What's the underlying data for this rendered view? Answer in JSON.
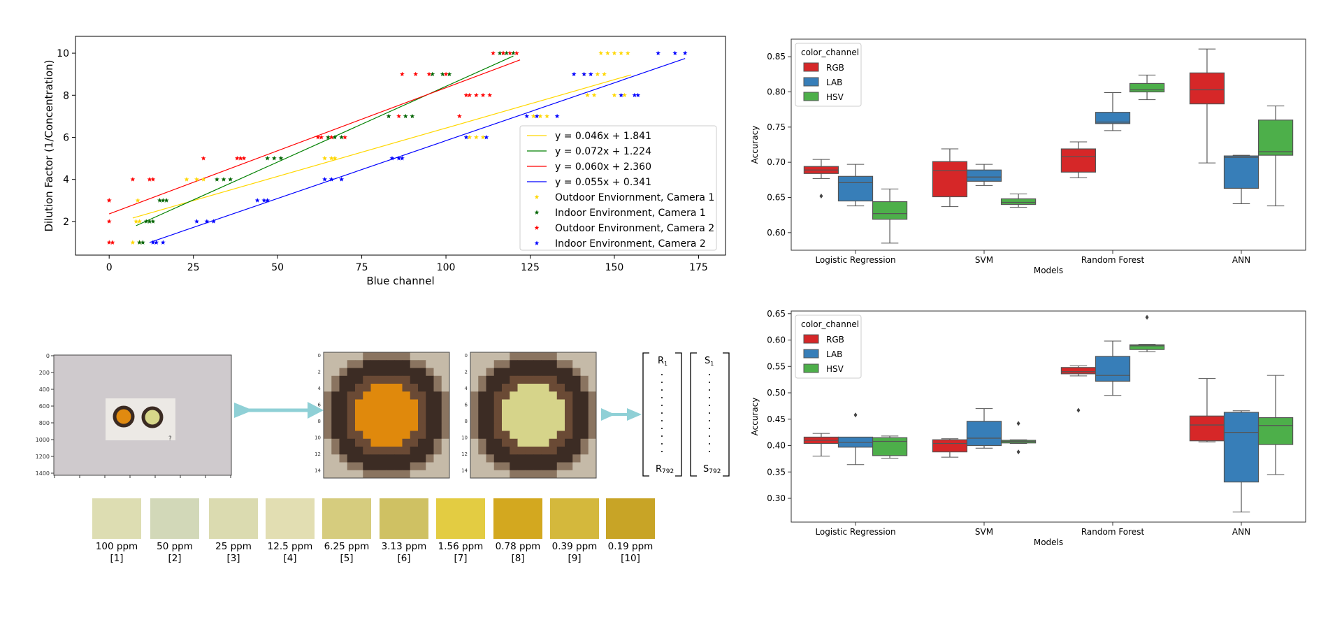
{
  "scatter_chart": {
    "chart_data": {
      "type": "scatter",
      "xlabel": "Blue channel",
      "ylabel": "Dilution Factor (1/Concentration)",
      "xlim": [
        -10,
        183
      ],
      "ylim": [
        0.4,
        10.8
      ],
      "xticks": [
        0,
        25,
        50,
        75,
        100,
        125,
        150,
        175
      ],
      "yticks": [
        2,
        4,
        6,
        8,
        10
      ],
      "legend_position": "lower-right",
      "lines": [
        {
          "label": "y =    0.046x +    1.841",
          "color": "#ffd700",
          "slope": 0.046,
          "intercept": 1.841,
          "x_range": [
            7,
            155
          ]
        },
        {
          "label": "y =    0.072x +    1.224",
          "color": "#008000",
          "slope": 0.072,
          "intercept": 1.224,
          "x_range": [
            8,
            120
          ]
        },
        {
          "label": "y =    0.060x +    2.360",
          "color": "#ff0000",
          "slope": 0.06,
          "intercept": 2.36,
          "x_range": [
            0,
            122
          ]
        },
        {
          "label": "y =    0.055x +    0.341",
          "color": "#0000ff",
          "slope": 0.055,
          "intercept": 0.341,
          "x_range": [
            12,
            171
          ]
        }
      ],
      "series": [
        {
          "name": "Outdoor Enviornment, Camera 1",
          "color": "#ffd700",
          "points": [
            [
              7,
              1
            ],
            [
              9,
              1
            ],
            [
              8,
              2
            ],
            [
              9,
              2
            ],
            [
              8.5,
              3
            ],
            [
              23,
              4
            ],
            [
              26,
              4
            ],
            [
              28,
              4
            ],
            [
              64,
              5
            ],
            [
              66,
              5
            ],
            [
              67,
              5
            ],
            [
              107,
              6
            ],
            [
              109,
              6
            ],
            [
              111,
              6
            ],
            [
              126,
              7
            ],
            [
              128,
              7
            ],
            [
              130,
              7
            ],
            [
              142,
              8
            ],
            [
              144,
              8
            ],
            [
              150,
              8
            ],
            [
              153,
              8
            ],
            [
              141,
              9
            ],
            [
              145,
              9
            ],
            [
              147,
              9
            ],
            [
              146,
              10
            ],
            [
              148,
              10
            ],
            [
              150,
              10
            ],
            [
              152,
              10
            ],
            [
              154,
              10
            ]
          ]
        },
        {
          "name": "Indoor Environment, Camera 1",
          "color": "#006400",
          "points": [
            [
              9,
              1
            ],
            [
              10,
              1
            ],
            [
              11,
              2
            ],
            [
              12,
              2
            ],
            [
              13,
              2
            ],
            [
              15,
              3
            ],
            [
              16,
              3
            ],
            [
              17,
              3
            ],
            [
              32,
              4
            ],
            [
              34,
              4
            ],
            [
              36,
              4
            ],
            [
              47,
              5
            ],
            [
              49,
              5
            ],
            [
              51,
              5
            ],
            [
              65,
              6
            ],
            [
              67,
              6
            ],
            [
              69,
              6
            ],
            [
              83,
              7
            ],
            [
              88,
              7
            ],
            [
              90,
              7
            ],
            [
              96,
              9
            ],
            [
              99,
              9
            ],
            [
              101,
              9
            ],
            [
              116,
              10
            ],
            [
              117,
              10
            ],
            [
              118,
              10
            ],
            [
              120,
              10
            ]
          ]
        },
        {
          "name": "Outdoor Environment, Camera 2",
          "color": "#ff0000",
          "points": [
            [
              0,
              1
            ],
            [
              1,
              1
            ],
            [
              0,
              2
            ],
            [
              0,
              3
            ],
            [
              0,
              3
            ],
            [
              7,
              4
            ],
            [
              12,
              4
            ],
            [
              13,
              4
            ],
            [
              28,
              5
            ],
            [
              38,
              5
            ],
            [
              40,
              5
            ],
            [
              39,
              5
            ],
            [
              62,
              6
            ],
            [
              63,
              6
            ],
            [
              66,
              6
            ],
            [
              70,
              6
            ],
            [
              86,
              7
            ],
            [
              104,
              7
            ],
            [
              87,
              9
            ],
            [
              91,
              9
            ],
            [
              95,
              9
            ],
            [
              100,
              9
            ],
            [
              106,
              8
            ],
            [
              107,
              8
            ],
            [
              109,
              8
            ],
            [
              111,
              8
            ],
            [
              113,
              8
            ],
            [
              114,
              10
            ],
            [
              117,
              10
            ],
            [
              119,
              10
            ],
            [
              121,
              10
            ]
          ]
        },
        {
          "name": "Indoor Environment, Camera 2",
          "color": "#0000ff",
          "points": [
            [
              13,
              1
            ],
            [
              14,
              1
            ],
            [
              16,
              1
            ],
            [
              26,
              2
            ],
            [
              29,
              2
            ],
            [
              31,
              2
            ],
            [
              44,
              3
            ],
            [
              46,
              3
            ],
            [
              47,
              3
            ],
            [
              64,
              4
            ],
            [
              66,
              4
            ],
            [
              69,
              4
            ],
            [
              84,
              5
            ],
            [
              86,
              5
            ],
            [
              87,
              5
            ],
            [
              106,
              6
            ],
            [
              112,
              6
            ],
            [
              124,
              7
            ],
            [
              127,
              7
            ],
            [
              133,
              7
            ],
            [
              138,
              9
            ],
            [
              141,
              9
            ],
            [
              143,
              9
            ],
            [
              152,
              8
            ],
            [
              156,
              8
            ],
            [
              157,
              8
            ],
            [
              163,
              10
            ],
            [
              168,
              10
            ],
            [
              171,
              10
            ]
          ]
        }
      ]
    }
  },
  "box_chart_top": {
    "chart_data": {
      "type": "box",
      "xlabel": "Models",
      "ylabel": "Accuracy",
      "ylim": [
        0.575,
        0.875
      ],
      "yticks": [
        0.6,
        0.65,
        0.7,
        0.75,
        0.8,
        0.85
      ],
      "categories": [
        "Logistic Regression",
        "SVM",
        "Random Forest",
        "ANN"
      ],
      "legend_title": "color_channel",
      "legend_position": "top-left",
      "series": [
        {
          "name": "RGB",
          "color": "#d62728",
          "boxes": [
            {
              "q1": 0.684,
              "median": 0.689,
              "q3": 0.694,
              "lo": 0.677,
              "hi": 0.704,
              "outliers": [
                0.652
              ]
            },
            {
              "q1": 0.651,
              "median": 0.688,
              "q3": 0.701,
              "lo": 0.637,
              "hi": 0.719,
              "outliers": []
            },
            {
              "q1": 0.686,
              "median": 0.708,
              "q3": 0.719,
              "lo": 0.678,
              "hi": 0.729,
              "outliers": []
            },
            {
              "q1": 0.783,
              "median": 0.803,
              "q3": 0.827,
              "lo": 0.699,
              "hi": 0.861,
              "outliers": []
            }
          ]
        },
        {
          "name": "LAB",
          "color": "#377eb8",
          "boxes": [
            {
              "q1": 0.645,
              "median": 0.671,
              "q3": 0.68,
              "lo": 0.638,
              "hi": 0.697,
              "outliers": []
            },
            {
              "q1": 0.673,
              "median": 0.679,
              "q3": 0.689,
              "lo": 0.667,
              "hi": 0.697,
              "outliers": []
            },
            {
              "q1": 0.755,
              "median": 0.757,
              "q3": 0.771,
              "lo": 0.745,
              "hi": 0.799,
              "outliers": []
            },
            {
              "q1": 0.663,
              "median": 0.707,
              "q3": 0.709,
              "lo": 0.641,
              "hi": 0.71,
              "outliers": []
            }
          ]
        },
        {
          "name": "HSV",
          "color": "#4daf4a",
          "boxes": [
            {
              "q1": 0.619,
              "median": 0.627,
              "q3": 0.644,
              "lo": 0.585,
              "hi": 0.662,
              "outliers": []
            },
            {
              "q1": 0.64,
              "median": 0.643,
              "q3": 0.648,
              "lo": 0.636,
              "hi": 0.655,
              "outliers": []
            },
            {
              "q1": 0.8,
              "median": 0.803,
              "q3": 0.812,
              "lo": 0.789,
              "hi": 0.824,
              "outliers": []
            },
            {
              "q1": 0.71,
              "median": 0.715,
              "q3": 0.76,
              "lo": 0.638,
              "hi": 0.78,
              "outliers": []
            }
          ]
        }
      ]
    }
  },
  "box_chart_bottom": {
    "chart_data": {
      "type": "box",
      "xlabel": "Models",
      "ylabel": "Accuracy",
      "ylim": [
        0.255,
        0.655
      ],
      "yticks": [
        0.3,
        0.35,
        0.4,
        0.45,
        0.5,
        0.55,
        0.6,
        0.65
      ],
      "categories": [
        "Logistic Regression",
        "SVM",
        "Random Forest",
        "ANN"
      ],
      "legend_title": "color_channel",
      "legend_position": "top-left",
      "series": [
        {
          "name": "RGB",
          "color": "#d62728",
          "boxes": [
            {
              "q1": 0.404,
              "median": 0.41,
              "q3": 0.416,
              "lo": 0.38,
              "hi": 0.423,
              "outliers": []
            },
            {
              "q1": 0.388,
              "median": 0.404,
              "q3": 0.411,
              "lo": 0.378,
              "hi": 0.413,
              "outliers": []
            },
            {
              "q1": 0.536,
              "median": 0.54,
              "q3": 0.548,
              "lo": 0.532,
              "hi": 0.551,
              "outliers": [
                0.467
              ]
            },
            {
              "q1": 0.409,
              "median": 0.439,
              "q3": 0.456,
              "lo": 0.407,
              "hi": 0.527,
              "outliers": []
            }
          ]
        },
        {
          "name": "LAB",
          "color": "#377eb8",
          "boxes": [
            {
              "q1": 0.397,
              "median": 0.406,
              "q3": 0.416,
              "lo": 0.364,
              "hi": 0.416,
              "outliers": [
                0.458
              ]
            },
            {
              "q1": 0.4,
              "median": 0.414,
              "q3": 0.446,
              "lo": 0.395,
              "hi": 0.47,
              "outliers": []
            },
            {
              "q1": 0.522,
              "median": 0.533,
              "q3": 0.569,
              "lo": 0.495,
              "hi": 0.598,
              "outliers": []
            },
            {
              "q1": 0.331,
              "median": 0.425,
              "q3": 0.463,
              "lo": 0.274,
              "hi": 0.466,
              "outliers": []
            }
          ]
        },
        {
          "name": "HSV",
          "color": "#4daf4a",
          "boxes": [
            {
              "q1": 0.381,
              "median": 0.408,
              "q3": 0.415,
              "lo": 0.376,
              "hi": 0.418,
              "outliers": []
            },
            {
              "q1": 0.405,
              "median": 0.408,
              "q3": 0.41,
              "lo": 0.404,
              "hi": 0.411,
              "outliers": [
                0.442,
                0.388
              ]
            },
            {
              "q1": 0.582,
              "median": 0.589,
              "q3": 0.591,
              "lo": 0.578,
              "hi": 0.592,
              "outliers": [
                0.643
              ]
            },
            {
              "q1": 0.402,
              "median": 0.438,
              "q3": 0.453,
              "lo": 0.345,
              "hi": 0.533,
              "outliers": []
            }
          ]
        }
      ]
    }
  },
  "image_panel": {
    "photo_axis": {
      "yticks": [
        "0",
        "200",
        "400",
        "600",
        "800",
        "1000",
        "1200",
        "1400"
      ]
    },
    "crop_axis": {
      "yticks": [
        "0",
        "2",
        "4",
        "6",
        "8",
        "10",
        "12",
        "14"
      ]
    },
    "vector_r": {
      "top": "R",
      "top_sub": "1",
      "bottom": "R",
      "bottom_sub": "792"
    },
    "vector_s": {
      "top": "S",
      "top_sub": "1",
      "bottom": "S",
      "bottom_sub": "792"
    },
    "photo_mark": "?",
    "colors": {
      "arrow": "#8fd0d6",
      "photo_bg": "#cdc8cc",
      "spot_orange": "#e08a10",
      "spot_pale": "#d9d88a",
      "ring": "#3b2a22",
      "crop_bg": "#c3b8a5"
    }
  },
  "swatches": [
    {
      "conc": "100 ppm",
      "idx": "[1]",
      "color": "#ddddb2"
    },
    {
      "conc": "50 ppm",
      "idx": "[2]",
      "color": "#d2d8b8"
    },
    {
      "conc": "25 ppm",
      "idx": "[3]",
      "color": "#dbdbb0"
    },
    {
      "conc": "12.5 ppm",
      "idx": "[4]",
      "color": "#e2deb2"
    },
    {
      "conc": "6.25 ppm",
      "idx": "[5]",
      "color": "#d6cc7e"
    },
    {
      "conc": "3.13 ppm",
      "idx": "[6]",
      "color": "#cfc163"
    },
    {
      "conc": "1.56 ppm",
      "idx": "[7]",
      "color": "#e3cc42"
    },
    {
      "conc": "0.78 ppm",
      "idx": "[8]",
      "color": "#d3a81f"
    },
    {
      "conc": "0.39 ppm",
      "idx": "[9]",
      "color": "#d4b83c"
    },
    {
      "conc": "0.19 ppm",
      "idx": "[10]",
      "color": "#c8a426"
    }
  ]
}
